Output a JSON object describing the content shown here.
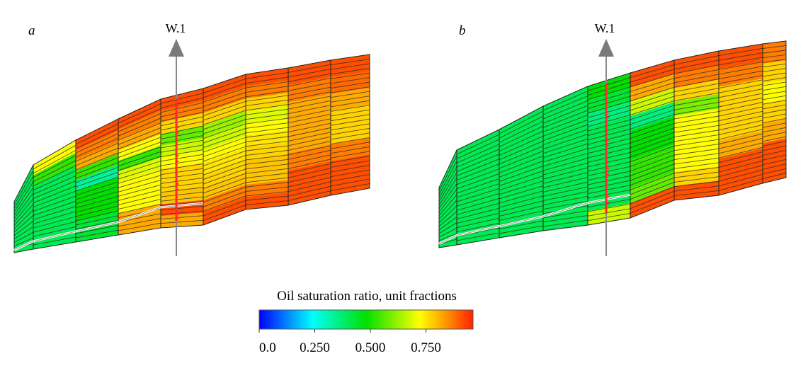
{
  "panels": [
    {
      "label": "a",
      "well": "W.1",
      "columns_saturation": [
        [
          0.42,
          0.42,
          0.42,
          0.42,
          0.42,
          0.42,
          0.42,
          0.42
        ],
        [
          0.75,
          0.55,
          0.42,
          0.42,
          0.42,
          0.42,
          0.42,
          0.42
        ],
        [
          0.95,
          0.9,
          0.85,
          0.55,
          0.35,
          0.5,
          0.5,
          0.5,
          0.45,
          0.45
        ],
        [
          0.95,
          0.9,
          0.85,
          0.75,
          0.55,
          0.72,
          0.75,
          0.75,
          0.75,
          0.85,
          0.85
        ],
        [
          0.95,
          0.9,
          0.8,
          0.6,
          0.7,
          0.75,
          0.8,
          0.8,
          0.82,
          0.95,
          0.85
        ],
        [
          0.95,
          0.9,
          0.8,
          0.65,
          0.7,
          0.75,
          0.78,
          0.8,
          0.82,
          0.9,
          0.95
        ],
        [
          0.95,
          0.9,
          0.8,
          0.72,
          0.75,
          0.78,
          0.8,
          0.82,
          0.82,
          0.9,
          0.95
        ],
        [
          0.95,
          0.9,
          0.85,
          0.85,
          0.85,
          0.9,
          0.95,
          0.95
        ],
        [
          0.95,
          0.92,
          0.85,
          0.8,
          0.8,
          0.9,
          0.95,
          0.95
        ]
      ]
    },
    {
      "label": "b",
      "well": "W.1",
      "columns_saturation": [
        [
          0.42,
          0.42,
          0.42,
          0.42,
          0.42,
          0.42,
          0.42,
          0.42
        ],
        [
          0.42,
          0.42,
          0.42,
          0.42,
          0.42,
          0.42,
          0.42,
          0.42
        ],
        [
          0.42,
          0.42,
          0.42,
          0.42,
          0.42,
          0.42,
          0.42,
          0.42
        ],
        [
          0.42,
          0.42,
          0.42,
          0.42,
          0.42,
          0.42,
          0.42,
          0.42
        ],
        [
          0.5,
          0.45,
          0.38,
          0.42,
          0.42,
          0.42,
          0.42,
          0.42,
          0.42,
          0.7
        ],
        [
          0.95,
          0.85,
          0.7,
          0.38,
          0.5,
          0.5,
          0.55,
          0.55,
          0.6,
          0.95
        ],
        [
          0.95,
          0.9,
          0.8,
          0.62,
          0.75,
          0.75,
          0.75,
          0.75,
          0.8,
          0.95
        ],
        [
          0.95,
          0.9,
          0.8,
          0.8,
          0.8,
          0.85,
          0.95,
          0.95
        ],
        [
          0.9,
          0.8,
          0.75,
          0.8,
          0.85,
          0.95,
          0.95
        ]
      ]
    }
  ],
  "colorbar": {
    "title": "Oil saturation ratio, unit fractions",
    "range": [
      0,
      1
    ],
    "ticks": [
      "0.0",
      "0.250",
      "0.500",
      "0.750"
    ],
    "tick_values": [
      0,
      0.25,
      0.5,
      0.75
    ],
    "stops": [
      {
        "value": 0,
        "color": "#0000ff"
      },
      {
        "value": 0.25,
        "color": "#00ffff"
      },
      {
        "value": 0.5,
        "color": "#00e000"
      },
      {
        "value": 0.75,
        "color": "#ffff00"
      },
      {
        "value": 0.87,
        "color": "#ff9900"
      },
      {
        "value": 1,
        "color": "#ff2000"
      }
    ]
  }
}
